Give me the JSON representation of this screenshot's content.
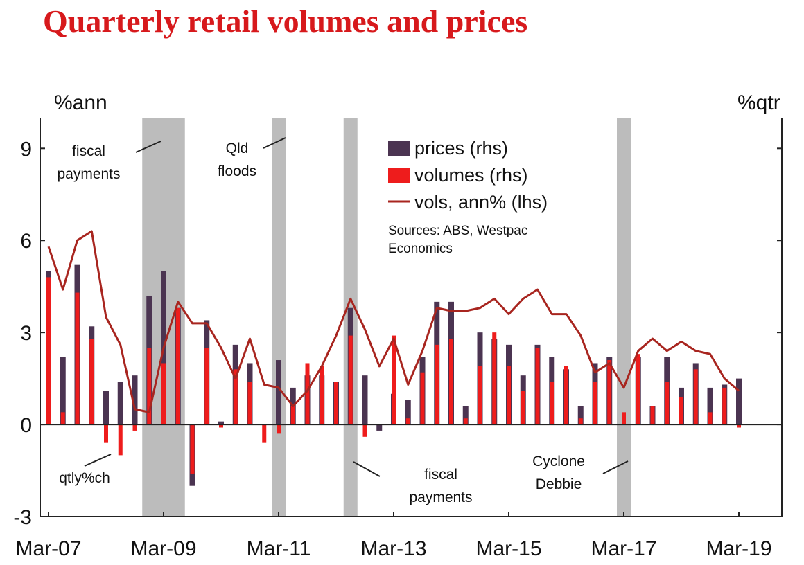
{
  "title": "Quarterly retail volumes and prices",
  "chart_data": {
    "type": "bar",
    "title": "Quarterly retail volumes and prices",
    "left_axis_label": "%ann",
    "right_axis_label": "%qtr",
    "ylim": [
      -3,
      10
    ],
    "yticks": [
      -3,
      0,
      3,
      6,
      9
    ],
    "ytick_labels": [
      "-3",
      "0",
      "3",
      "6",
      "9"
    ],
    "xtick_labels": [
      "Mar-07",
      "Mar-09",
      "Mar-11",
      "Mar-13",
      "Mar-15",
      "Mar-17",
      "Mar-19"
    ],
    "categories": [
      "Mar-07",
      "Jun-07",
      "Sep-07",
      "Dec-07",
      "Mar-08",
      "Jun-08",
      "Sep-08",
      "Dec-08",
      "Mar-09",
      "Jun-09",
      "Sep-09",
      "Dec-09",
      "Mar-10",
      "Jun-10",
      "Sep-10",
      "Dec-10",
      "Mar-11",
      "Jun-11",
      "Sep-11",
      "Dec-11",
      "Mar-12",
      "Jun-12",
      "Sep-12",
      "Dec-12",
      "Mar-13",
      "Jun-13",
      "Sep-13",
      "Dec-13",
      "Mar-14",
      "Jun-14",
      "Sep-14",
      "Dec-14",
      "Mar-15",
      "Jun-15",
      "Sep-15",
      "Dec-15",
      "Mar-16",
      "Jun-16",
      "Sep-16",
      "Dec-16",
      "Mar-17",
      "Jun-17",
      "Sep-17",
      "Dec-17",
      "Mar-18",
      "Jun-18",
      "Sep-18",
      "Dec-18",
      "Mar-19",
      "Jun-19"
    ],
    "series": [
      {
        "name": "prices (rhs)",
        "kind": "bar",
        "color": "#4b3451",
        "values": [
          5.0,
          2.2,
          5.2,
          3.2,
          1.1,
          1.4,
          1.6,
          4.2,
          5.0,
          3.8,
          -2.0,
          3.4,
          0.1,
          2.6,
          2.0,
          0.0,
          2.1,
          1.2,
          1.6,
          1.6,
          1.4,
          3.8,
          1.6,
          -0.2,
          1.0,
          0.8,
          2.2,
          4.0,
          4.0,
          0.6,
          3.0,
          2.8,
          2.6,
          1.6,
          2.6,
          2.2,
          1.8,
          0.6,
          2.0,
          2.2,
          0.0,
          2.2,
          0.6,
          2.2,
          1.2,
          2.0,
          1.2,
          1.3,
          1.5,
          0.0
        ]
      },
      {
        "name": "volumes (rhs)",
        "kind": "bar",
        "color": "#ee1c1c",
        "values": [
          4.8,
          0.4,
          4.3,
          2.8,
          -0.6,
          -1.0,
          -0.2,
          2.5,
          2.0,
          3.8,
          -1.6,
          2.5,
          -0.1,
          1.8,
          1.4,
          -0.6,
          -0.3,
          0.6,
          2.0,
          1.9,
          1.4,
          2.9,
          -0.4,
          0.0,
          2.9,
          0.2,
          1.7,
          2.6,
          2.8,
          0.2,
          1.9,
          3.0,
          1.9,
          1.1,
          2.5,
          1.4,
          1.9,
          0.2,
          1.4,
          2.1,
          0.4,
          2.3,
          0.6,
          1.4,
          0.9,
          1.8,
          0.4,
          1.2,
          -0.1,
          0.0
        ]
      },
      {
        "name": "vols, ann% (lhs)",
        "kind": "line",
        "color": "#a8251f",
        "values": [
          5.8,
          4.4,
          6.0,
          6.3,
          3.5,
          2.6,
          0.5,
          0.4,
          2.5,
          4.0,
          3.3,
          3.3,
          2.5,
          1.5,
          2.8,
          1.3,
          1.2,
          0.6,
          1.1,
          1.9,
          2.9,
          4.1,
          3.1,
          1.9,
          2.8,
          1.3,
          2.4,
          3.8,
          3.7,
          3.7,
          3.8,
          4.1,
          3.6,
          4.1,
          4.4,
          3.6,
          3.6,
          2.9,
          1.7,
          2.0,
          1.2,
          2.4,
          2.8,
          2.4,
          2.7,
          2.4,
          2.3,
          1.5,
          1.1,
          null
        ]
      }
    ],
    "shaded_periods": [
      {
        "from": "Dec-08",
        "to": "Jun-09"
      },
      {
        "from": "Mar-11",
        "to": "Mar-11"
      },
      {
        "from": "Jun-12",
        "to": "Jun-12"
      },
      {
        "from": "Mar-17",
        "to": "Mar-17"
      }
    ],
    "legend": {
      "placement": "top-center",
      "entries": [
        "prices (rhs)",
        "volumes (rhs)",
        "vols, ann% (lhs)"
      ],
      "source_line1": "Sources: ABS, Westpac",
      "source_line2": "Economics"
    },
    "annotations": [
      {
        "line1": "fiscal",
        "line2": "payments"
      },
      {
        "line1": "Qld",
        "line2": "floods"
      },
      {
        "line1": "qtly%ch",
        "line2": ""
      },
      {
        "line1": "fiscal",
        "line2": "payments"
      },
      {
        "line1": "Cyclone",
        "line2": "Debbie"
      }
    ]
  }
}
